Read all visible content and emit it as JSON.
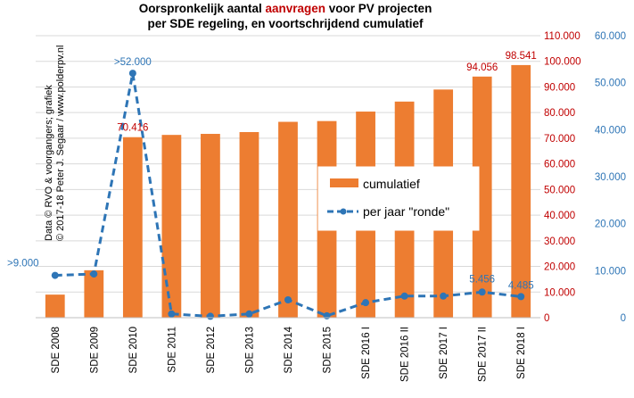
{
  "colors": {
    "bar": "#ED7D31",
    "line": "#2E75B6",
    "left_axis": "#C00000",
    "right_axis": "#2E75B6",
    "grid": "#D9D9D9",
    "title_highlight": "#C00000"
  },
  "chart_data": {
    "type": "bar",
    "title": {
      "line1_before": "Oorspronkelijk  aantal ",
      "line1_highlight": "aanvragen",
      "line1_after": " voor PV projecten",
      "line2": "per SDE  regeling,  en voortschrijdend  cumulatief"
    },
    "watermark": {
      "line1": "Data © RVO & voorgangers; grafiek",
      "line2": "© 2017-18 Peter J. Segaar / www.polderpv.nl"
    },
    "categories": [
      "SDE 2008",
      "SDE 2009",
      "SDE 2010",
      "SDE 2011",
      "SDE 2012",
      "SDE 2013",
      "SDE 2014",
      "SDE 2015",
      "SDE 2016 I",
      "SDE 2016 II",
      "SDE 2017 I",
      "SDE 2017 II",
      "SDE 2018 I"
    ],
    "left_axis": {
      "ylim": [
        0,
        110000
      ],
      "ticks": [
        "0",
        "10.000",
        "20.000",
        "30.000",
        "40.000",
        "50.000",
        "60.000",
        "70.000",
        "80.000",
        "90.000",
        "100.000",
        "110.000"
      ]
    },
    "right_axis": {
      "ylim": [
        0,
        60000
      ],
      "ticks": [
        "0",
        "10.000",
        "20.000",
        "30.000",
        "40.000",
        "50.000",
        "60.000"
      ]
    },
    "series": [
      {
        "name": "cumulatief",
        "type": "bar",
        "axis": "left",
        "values": [
          9000,
          18500,
          70416,
          71300,
          71700,
          72400,
          76400,
          76700,
          80400,
          84300,
          89000,
          94056,
          98541
        ],
        "data_labels": [
          "",
          "",
          "70.416",
          "",
          "",
          "",
          "",
          "",
          "",
          "",
          "",
          "94.056",
          "98.541"
        ]
      },
      {
        "name": "per jaar \"ronde\"",
        "type": "line",
        "axis": "right",
        "values": [
          9000,
          9300,
          52000,
          800,
          300,
          800,
          3800,
          400,
          3200,
          4600,
          4600,
          5456,
          4485
        ],
        "data_labels": [
          ">9.000",
          "",
          ">52.000",
          "",
          "",
          "",
          "",
          "",
          "",
          "",
          "",
          "5.456",
          "4.485"
        ]
      }
    ],
    "grid": true,
    "legend_position": "center-right"
  }
}
